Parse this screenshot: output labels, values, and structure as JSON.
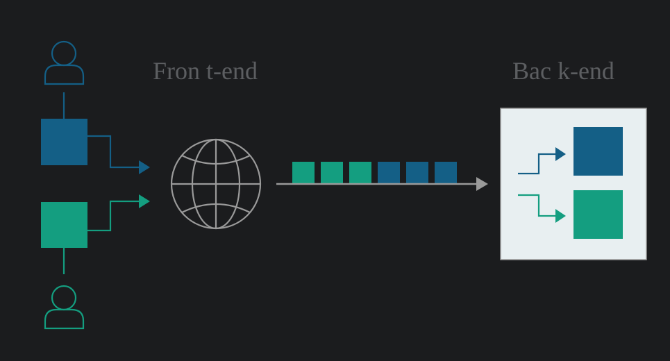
{
  "labels": {
    "frontend": "Fron t-end",
    "backend": "Bac k-end"
  },
  "colors": {
    "background": "#1b1c1e",
    "user_blue": "#145f86",
    "user_green": "#149e80",
    "arrow_gray": "#9a9a9a",
    "globe_stroke": "#9a9a9a",
    "backend_panel": "#e8eff1",
    "label_gray": "#5c5e61"
  },
  "icons": {
    "user_top": "user-icon",
    "user_bottom": "user-icon",
    "globe": "globe-icon"
  },
  "queue": {
    "blocks": [
      "green",
      "green",
      "green",
      "blue",
      "blue",
      "blue"
    ]
  }
}
